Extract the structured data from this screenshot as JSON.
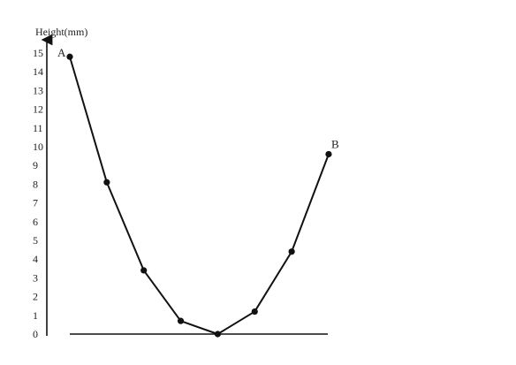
{
  "chart_data": {
    "type": "line",
    "ylabel": "Height(mm)",
    "xlabel": "",
    "ylim": [
      0,
      15
    ],
    "yticks": [
      0,
      1,
      2,
      3,
      4,
      5,
      6,
      7,
      8,
      9,
      10,
      11,
      12,
      13,
      14,
      15
    ],
    "grid": false,
    "series": [
      {
        "x": [
          0,
          1,
          2,
          3,
          4,
          5,
          6,
          7
        ],
        "y": [
          14.8,
          8.1,
          3.4,
          0.7,
          0.0,
          1.2,
          4.4,
          9.6
        ]
      }
    ],
    "point_labels": [
      {
        "index": 0,
        "text": "A"
      },
      {
        "index": 7,
        "text": "B"
      }
    ],
    "colors": {
      "line": "#111111",
      "axis": "#111111"
    }
  }
}
